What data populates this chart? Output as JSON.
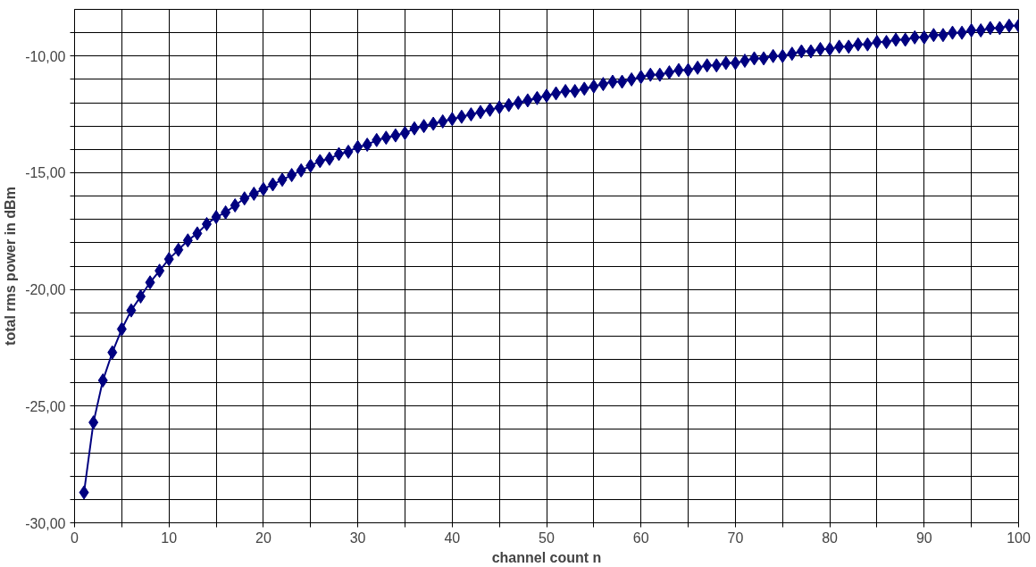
{
  "chart_data": {
    "type": "line",
    "xlabel": "channel count n",
    "ylabel": "total rms power in dBm",
    "x": [
      1,
      2,
      3,
      4,
      5,
      6,
      7,
      8,
      9,
      10,
      11,
      12,
      13,
      14,
      15,
      16,
      17,
      18,
      19,
      20,
      21,
      22,
      23,
      24,
      25,
      26,
      27,
      28,
      29,
      30,
      31,
      32,
      33,
      34,
      35,
      36,
      37,
      38,
      39,
      40,
      41,
      42,
      43,
      44,
      45,
      46,
      47,
      48,
      49,
      50,
      51,
      52,
      53,
      54,
      55,
      56,
      57,
      58,
      59,
      60,
      61,
      62,
      63,
      64,
      65,
      66,
      67,
      68,
      69,
      70,
      71,
      72,
      73,
      74,
      75,
      76,
      77,
      78,
      79,
      80,
      81,
      82,
      83,
      84,
      85,
      86,
      87,
      88,
      89,
      90,
      91,
      92,
      93,
      94,
      95,
      96,
      97,
      98,
      99,
      100
    ],
    "series": [
      {
        "color": "#000080",
        "values": [
          -28.7,
          -25.7,
          -23.9,
          -22.7,
          -21.7,
          -20.9,
          -20.3,
          -19.7,
          -19.2,
          -18.7,
          -18.3,
          -17.9,
          -17.6,
          -17.2,
          -16.9,
          -16.7,
          -16.4,
          -16.1,
          -15.9,
          -15.7,
          -15.5,
          -15.3,
          -15.1,
          -14.9,
          -14.7,
          -14.5,
          -14.4,
          -14.2,
          -14.1,
          -13.9,
          -13.8,
          -13.6,
          -13.5,
          -13.4,
          -13.3,
          -13.1,
          -13.0,
          -12.9,
          -12.8,
          -12.7,
          -12.6,
          -12.5,
          -12.4,
          -12.3,
          -12.2,
          -12.1,
          -12.0,
          -11.9,
          -11.8,
          -11.7,
          -11.6,
          -11.5,
          -11.5,
          -11.4,
          -11.3,
          -11.2,
          -11.1,
          -11.1,
          -11.0,
          -10.9,
          -10.8,
          -10.8,
          -10.7,
          -10.6,
          -10.6,
          -10.5,
          -10.4,
          -10.4,
          -10.3,
          -10.3,
          -10.2,
          -10.1,
          -10.1,
          -10.0,
          -10.0,
          -9.9,
          -9.8,
          -9.8,
          -9.7,
          -9.7,
          -9.6,
          -9.6,
          -9.5,
          -9.5,
          -9.4,
          -9.4,
          -9.3,
          -9.3,
          -9.2,
          -9.2,
          -9.1,
          -9.1,
          -9.0,
          -9.0,
          -8.9,
          -8.9,
          -8.8,
          -8.8,
          -8.7,
          -8.7
        ]
      }
    ],
    "xlim": [
      0,
      100
    ],
    "xticks": [
      0,
      {
        "value": 5,
        "label": null
      },
      10,
      {
        "value": 15,
        "label": null
      },
      20,
      {
        "value": 25,
        "label": null
      },
      30,
      {
        "value": 35,
        "label": null
      },
      40,
      {
        "value": 45,
        "label": null
      },
      50,
      {
        "value": 55,
        "label": null
      },
      60,
      {
        "value": 65,
        "label": null
      },
      70,
      {
        "value": 75,
        "label": null
      },
      80,
      {
        "value": 85,
        "label": null
      },
      90,
      {
        "value": 95,
        "label": null
      },
      100
    ],
    "ylim": [
      -30,
      -8
    ],
    "yticks": [
      {
        "value": -30,
        "label": "-30,00"
      },
      {
        "value": -29,
        "label": null
      },
      {
        "value": -28,
        "label": null
      },
      {
        "value": -27,
        "label": null
      },
      {
        "value": -26,
        "label": null
      },
      {
        "value": -25,
        "label": "-25,00"
      },
      {
        "value": -24,
        "label": null
      },
      {
        "value": -23,
        "label": null
      },
      {
        "value": -22,
        "label": null
      },
      {
        "value": -21,
        "label": null
      },
      {
        "value": -20,
        "label": "-20,00"
      },
      {
        "value": -19,
        "label": null
      },
      {
        "value": -18,
        "label": null
      },
      {
        "value": -17,
        "label": null
      },
      {
        "value": -16,
        "label": null
      },
      {
        "value": -15,
        "label": "-15,00"
      },
      {
        "value": -14,
        "label": null
      },
      {
        "value": -13,
        "label": null
      },
      {
        "value": -12,
        "label": null
      },
      {
        "value": -11,
        "label": null
      },
      {
        "value": -10,
        "label": "-10,00"
      },
      {
        "value": -9,
        "label": null
      }
    ],
    "grid": true,
    "marker": "diamond",
    "line_style": "solid"
  }
}
